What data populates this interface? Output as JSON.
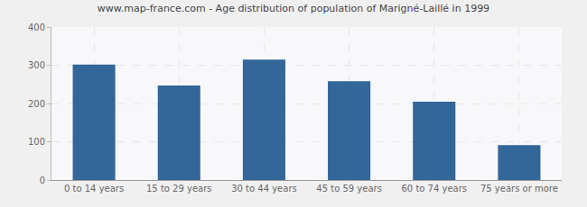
{
  "chart_data": {
    "type": "bar",
    "title": "www.map-france.com - Age distribution of population of Marigné-Laillé in 1999",
    "categories": [
      "0 to 14 years",
      "15 to 29 years",
      "30 to 44 years",
      "45 to 59 years",
      "60 to 74 years",
      "75 years or more"
    ],
    "values": [
      302,
      247,
      315,
      258,
      205,
      91
    ],
    "color": "#336699",
    "ylim": [
      0,
      400
    ],
    "yticks": [
      0,
      100,
      200,
      300,
      400
    ],
    "grid": true
  }
}
